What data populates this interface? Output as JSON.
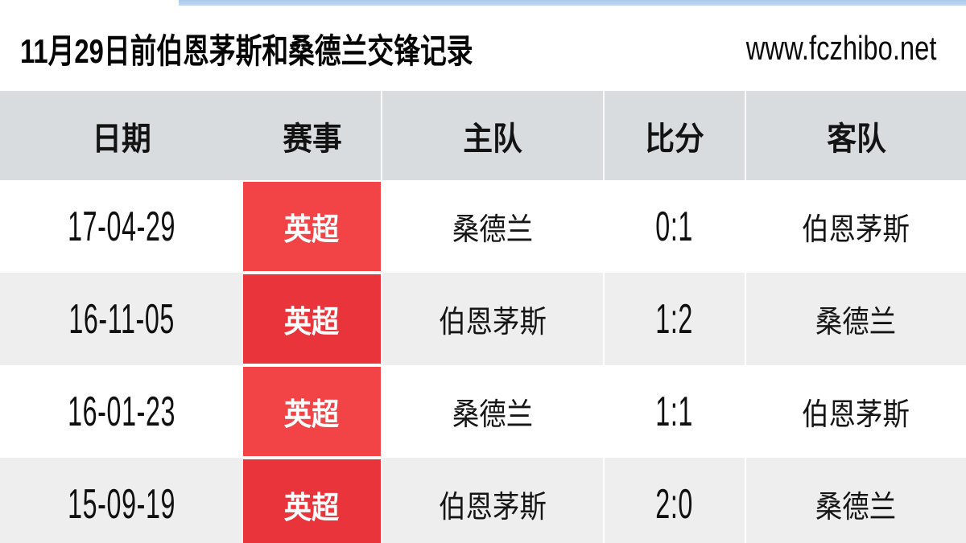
{
  "page": {
    "title": "11月29日前伯恩茅斯和桑德兰交锋记录",
    "site_url": "www.fczhibo.net"
  },
  "colors": {
    "accent_red": "#f24347",
    "accent_red_dark": "#e8343a",
    "topbar_blue": "#a9caec",
    "header_bg": "#d9dcde",
    "row_alt_bg": "#efeeee"
  },
  "table": {
    "columns": [
      "日期",
      "赛事",
      "主队",
      "比分",
      "客队"
    ],
    "rows": [
      {
        "date": "17-04-29",
        "competition": "英超",
        "home": "桑德兰",
        "score": "0:1",
        "away": "伯恩茅斯"
      },
      {
        "date": "16-11-05",
        "competition": "英超",
        "home": "伯恩茅斯",
        "score": "1:2",
        "away": "桑德兰"
      },
      {
        "date": "16-01-23",
        "competition": "英超",
        "home": "桑德兰",
        "score": "1:1",
        "away": "伯恩茅斯"
      },
      {
        "date": "15-09-19",
        "competition": "英超",
        "home": "伯恩茅斯",
        "score": "2:0",
        "away": "桑德兰"
      }
    ]
  }
}
